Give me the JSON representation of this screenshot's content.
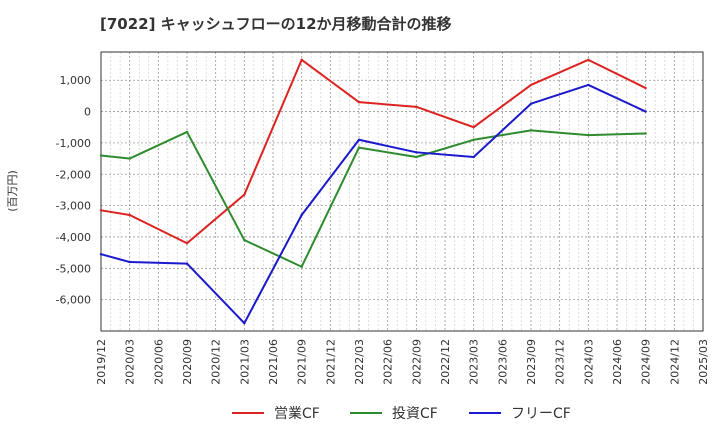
{
  "chart_data": {
    "type": "line",
    "title": "[7022]  キャッシュフローの12か月移動合計の推移",
    "ylabel": "(百万円)",
    "xlabel": "",
    "ylim": [
      -7000,
      1900
    ],
    "yticks": [
      1000,
      0,
      -1000,
      -2000,
      -3000,
      -4000,
      -5000,
      -6000
    ],
    "ytick_labels": [
      "1,000",
      "0",
      "-1,000",
      "-2,000",
      "-3,000",
      "-4,000",
      "-5,000",
      "-6,000"
    ],
    "categories": [
      "2019/12",
      "2020/03",
      "2020/06",
      "2020/09",
      "2020/12",
      "2021/03",
      "2021/06",
      "2021/09",
      "2021/12",
      "2022/03",
      "2022/06",
      "2022/09",
      "2022/12",
      "2023/03",
      "2023/06",
      "2023/09",
      "2023/12",
      "2024/03",
      "2024/06",
      "2024/09",
      "2024/12",
      "2025/03"
    ],
    "grid": true,
    "legend_position": "bottom",
    "series": [
      {
        "name": "営業CF",
        "color": "#dd2222",
        "points": [
          [
            "2019/12",
            -3150
          ],
          [
            "2020/03",
            -3300
          ],
          [
            "2020/09",
            -4200
          ],
          [
            "2021/03",
            -2650
          ],
          [
            "2021/09",
            1650
          ],
          [
            "2022/03",
            300
          ],
          [
            "2022/09",
            150
          ],
          [
            "2023/03",
            -500
          ],
          [
            "2023/09",
            850
          ],
          [
            "2024/03",
            1650
          ],
          [
            "2024/09",
            750
          ]
        ]
      },
      {
        "name": "投資CF",
        "color": "#2e8b2e",
        "points": [
          [
            "2019/12",
            -1400
          ],
          [
            "2020/03",
            -1500
          ],
          [
            "2020/09",
            -650
          ],
          [
            "2021/03",
            -4100
          ],
          [
            "2021/09",
            -4950
          ],
          [
            "2022/03",
            -1150
          ],
          [
            "2022/09",
            -1450
          ],
          [
            "2023/03",
            -900
          ],
          [
            "2023/09",
            -600
          ],
          [
            "2024/03",
            -750
          ],
          [
            "2024/09",
            -700
          ]
        ]
      },
      {
        "name": "フリーCF",
        "color": "#1a1acc",
        "points": [
          [
            "2019/12",
            -4550
          ],
          [
            "2020/03",
            -4800
          ],
          [
            "2020/09",
            -4850
          ],
          [
            "2021/03",
            -6750
          ],
          [
            "2021/09",
            -3300
          ],
          [
            "2022/03",
            -900
          ],
          [
            "2022/09",
            -1300
          ],
          [
            "2023/03",
            -1450
          ],
          [
            "2023/09",
            250
          ],
          [
            "2024/03",
            850
          ],
          [
            "2024/09",
            0
          ]
        ]
      }
    ]
  }
}
